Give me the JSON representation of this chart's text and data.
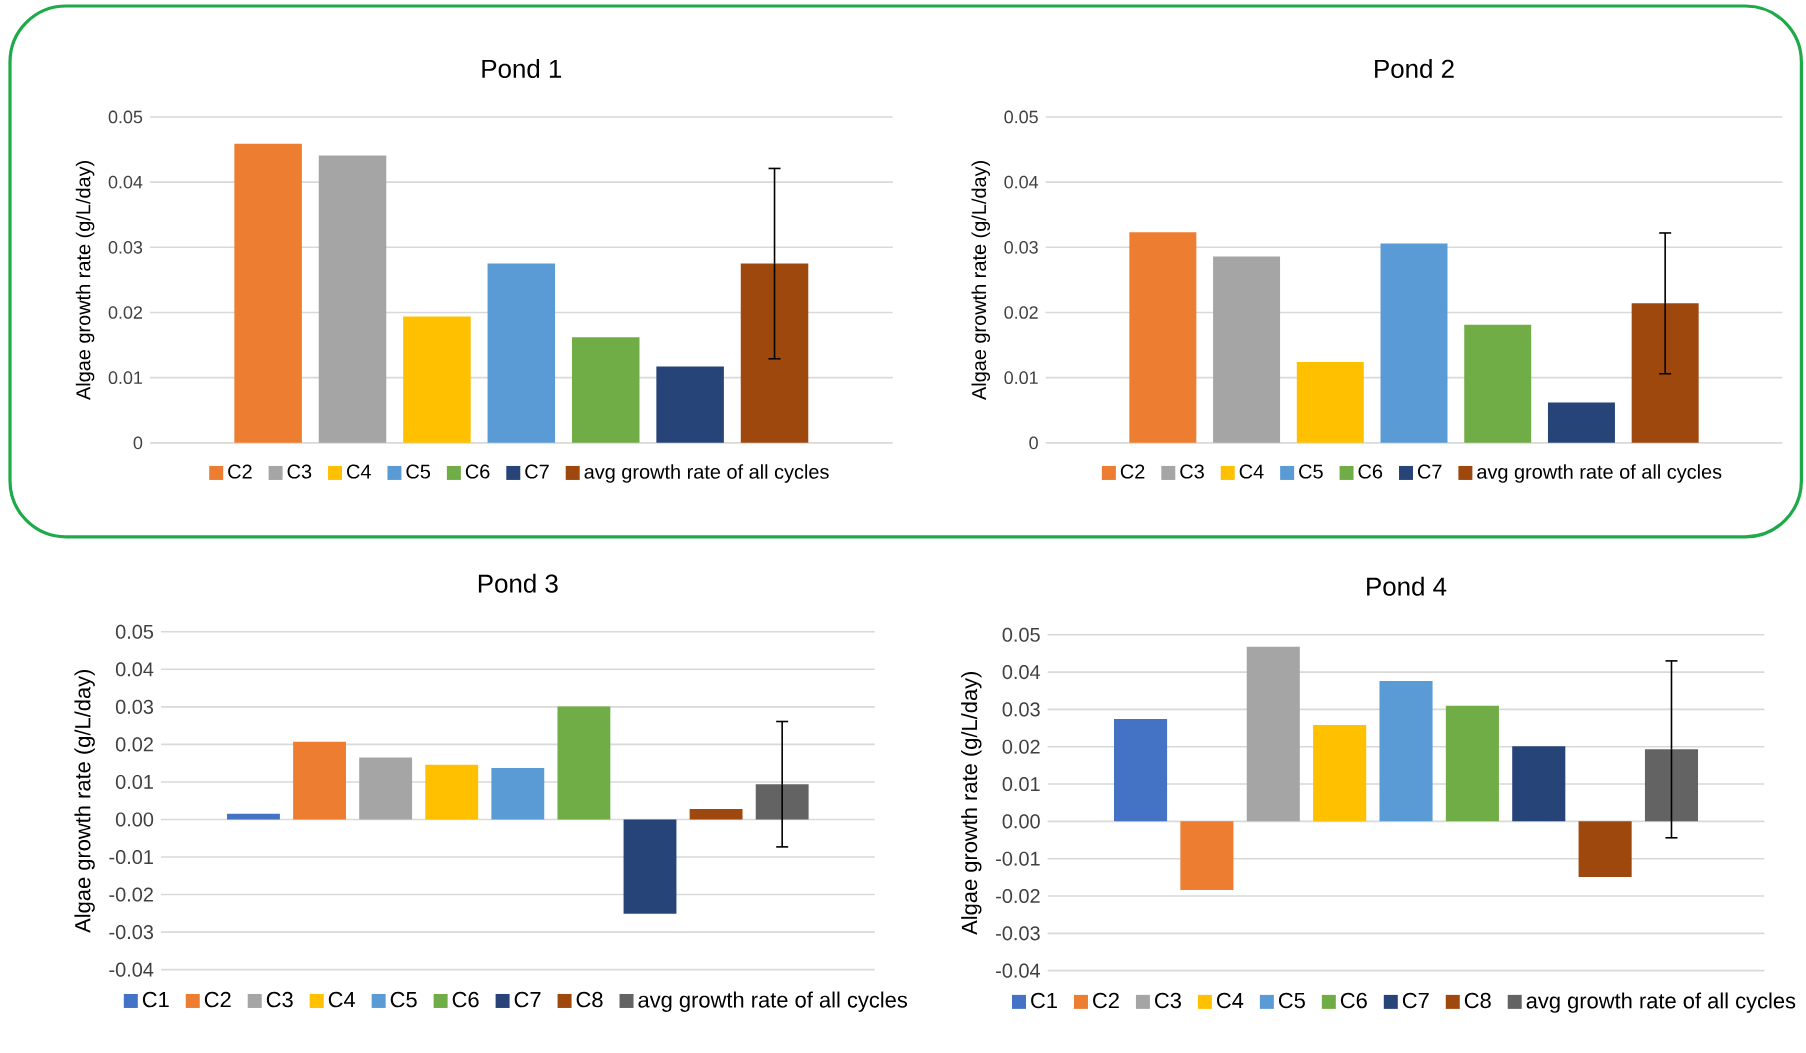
{
  "chart_data": [
    {
      "type": "bar",
      "title": "Pond 1",
      "ylabel": "Algae growth rate (g/L/day)",
      "categories": [
        null
      ],
      "ylim": [
        0,
        0.05
      ],
      "yticks": [
        0,
        0.01,
        0.02,
        0.03,
        0.04,
        0.05
      ],
      "grid": "y",
      "legend": "bottom",
      "series": [
        {
          "name": "C2",
          "color": "#ed7d31",
          "values": [
            0.0459
          ]
        },
        {
          "name": "C3",
          "color": "#a5a5a5",
          "values": [
            0.0441
          ]
        },
        {
          "name": "C4",
          "color": "#ffc000",
          "values": [
            0.0194
          ]
        },
        {
          "name": "C5",
          "color": "#5b9bd5",
          "values": [
            0.0275
          ]
        },
        {
          "name": "C6",
          "color": "#70ad47",
          "values": [
            0.0162
          ]
        },
        {
          "name": "C7",
          "color": "#264478",
          "values": [
            0.0117
          ]
        },
        {
          "name": "avg growth rate of all cycles",
          "color": "#9e480e",
          "values": [
            0.0275
          ],
          "errors": [
            0.0146
          ]
        }
      ]
    },
    {
      "type": "bar",
      "title": "Pond 2",
      "ylabel": "Algae growth rate (g/L/day)",
      "categories": [
        null
      ],
      "ylim": [
        0,
        0.05
      ],
      "yticks": [
        0,
        0.01,
        0.02,
        0.03,
        0.04,
        0.05
      ],
      "grid": "y",
      "legend": "bottom",
      "series": [
        {
          "name": "C2",
          "color": "#ed7d31",
          "values": [
            0.0323
          ]
        },
        {
          "name": "C3",
          "color": "#a5a5a5",
          "values": [
            0.0286
          ]
        },
        {
          "name": "C4",
          "color": "#ffc000",
          "values": [
            0.0124
          ]
        },
        {
          "name": "C5",
          "color": "#5b9bd5",
          "values": [
            0.0306
          ]
        },
        {
          "name": "C6",
          "color": "#70ad47",
          "values": [
            0.0181
          ]
        },
        {
          "name": "C7",
          "color": "#264478",
          "values": [
            0.0062
          ]
        },
        {
          "name": "avg growth rate of all cycles",
          "color": "#9e480e",
          "values": [
            0.0214
          ],
          "errors": [
            0.0108
          ]
        }
      ]
    },
    {
      "type": "bar",
      "title": "Pond 3",
      "ylabel": "Algae growth rate (g/L/day)",
      "categories": [
        null
      ],
      "ylim": [
        -0.04,
        0.05
      ],
      "yticks": [
        -0.04,
        -0.03,
        -0.02,
        -0.01,
        {
          "value": 0,
          "label": "0.00"
        },
        0.01,
        0.02,
        0.03,
        0.04,
        0.05
      ],
      "grid": "y",
      "legend": "bottom",
      "series": [
        {
          "name": "C1",
          "color": "#4472c4",
          "values": [
            0.0015
          ]
        },
        {
          "name": "C2",
          "color": "#ed7d31",
          "values": [
            0.0207
          ]
        },
        {
          "name": "C3",
          "color": "#a5a5a5",
          "values": [
            0.0165
          ]
        },
        {
          "name": "C4",
          "color": "#ffc000",
          "values": [
            0.0146
          ]
        },
        {
          "name": "C5",
          "color": "#5b9bd5",
          "values": [
            0.0137
          ]
        },
        {
          "name": "C6",
          "color": "#70ad47",
          "values": [
            0.0301
          ]
        },
        {
          "name": "C7",
          "color": "#264478",
          "values": [
            -0.0251
          ]
        },
        {
          "name": "C8",
          "color": "#9e480e",
          "values": [
            0.0028
          ]
        },
        {
          "name": "avg growth rate of all cycles",
          "color": "#636363",
          "values": [
            0.0094
          ],
          "errors": [
            0.0167
          ]
        }
      ]
    },
    {
      "type": "bar",
      "title": "Pond 4",
      "ylabel": "Algae growth rate (g/L/day)",
      "categories": [
        null
      ],
      "ylim": [
        -0.04,
        0.05
      ],
      "yticks": [
        -0.04,
        -0.03,
        -0.02,
        -0.01,
        {
          "value": 0,
          "label": "0.00"
        },
        0.01,
        0.02,
        0.03,
        0.04,
        0.05
      ],
      "grid": "y",
      "legend": "bottom",
      "series": [
        {
          "name": "C1",
          "color": "#4472c4",
          "values": [
            0.0274
          ]
        },
        {
          "name": "C2",
          "color": "#ed7d31",
          "values": [
            -0.0184
          ]
        },
        {
          "name": "C3",
          "color": "#a5a5a5",
          "values": [
            0.0468
          ]
        },
        {
          "name": "C4",
          "color": "#ffc000",
          "values": [
            0.0258
          ]
        },
        {
          "name": "C5",
          "color": "#5b9bd5",
          "values": [
            0.0376
          ]
        },
        {
          "name": "C6",
          "color": "#70ad47",
          "values": [
            0.031
          ]
        },
        {
          "name": "C7",
          "color": "#264478",
          "values": [
            0.0201
          ]
        },
        {
          "name": "C8",
          "color": "#9e480e",
          "values": [
            -0.0149
          ]
        },
        {
          "name": "avg growth rate of all cycles",
          "color": "#636363",
          "values": [
            0.0193
          ],
          "errors": [
            0.0237
          ]
        }
      ]
    }
  ]
}
